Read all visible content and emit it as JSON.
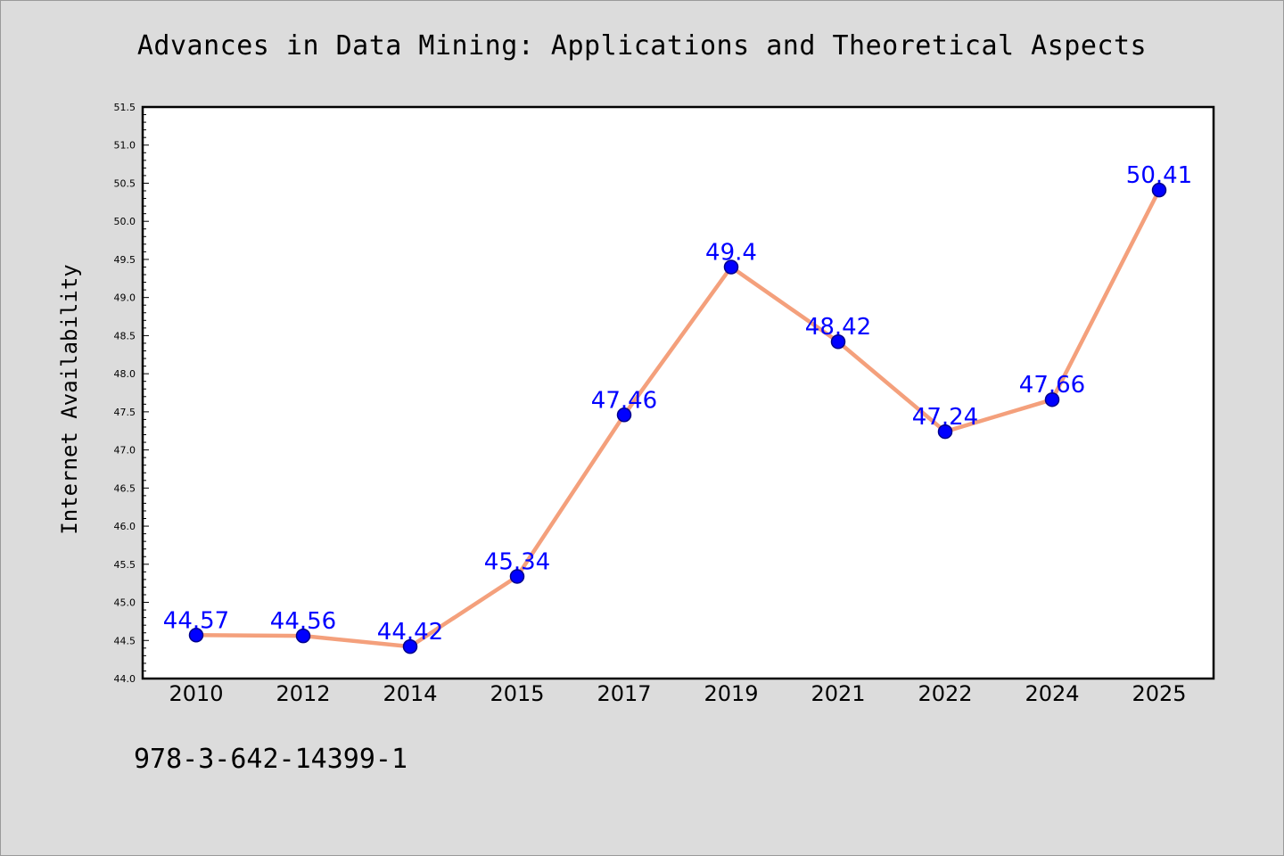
{
  "page": {
    "title": "Advances in Data Mining: Applications and Theoretical Aspects",
    "footer_code": "978-3-642-14399-1"
  },
  "colors": {
    "background": "#dcdcdc",
    "plot_background": "#ffffff",
    "line": "#f4a07c",
    "marker": "#0000ff",
    "data_label": "#0000ff"
  },
  "chart_data": {
    "type": "line",
    "title": "Advances in Data Mining: Applications and Theoretical Aspects",
    "xlabel": "",
    "ylabel": "Internet Availability",
    "categories": [
      "2010",
      "2012",
      "2014",
      "2015",
      "2017",
      "2019",
      "2021",
      "2022",
      "2024",
      "2025"
    ],
    "series": [
      {
        "values": [
          44.57,
          44.56,
          44.42,
          45.34,
          47.46,
          49.4,
          48.42,
          47.24,
          47.66,
          50.41
        ],
        "labels": [
          "44.57",
          "44.56",
          "44.42",
          "45.34",
          "47.46",
          "49.4",
          "48.42",
          "47.24",
          "47.66",
          "50.41"
        ]
      }
    ],
    "ylim": [
      44.0,
      51.5
    ],
    "y_ticks": [
      "44.0",
      "44.5",
      "45.0",
      "45.5",
      "46.0",
      "46.5",
      "47.0",
      "47.5",
      "48.0",
      "48.5",
      "49.0",
      "49.5",
      "50.0",
      "50.5",
      "51.0",
      "51.5"
    ],
    "grid": false,
    "legend": "none",
    "markers": "circle"
  }
}
